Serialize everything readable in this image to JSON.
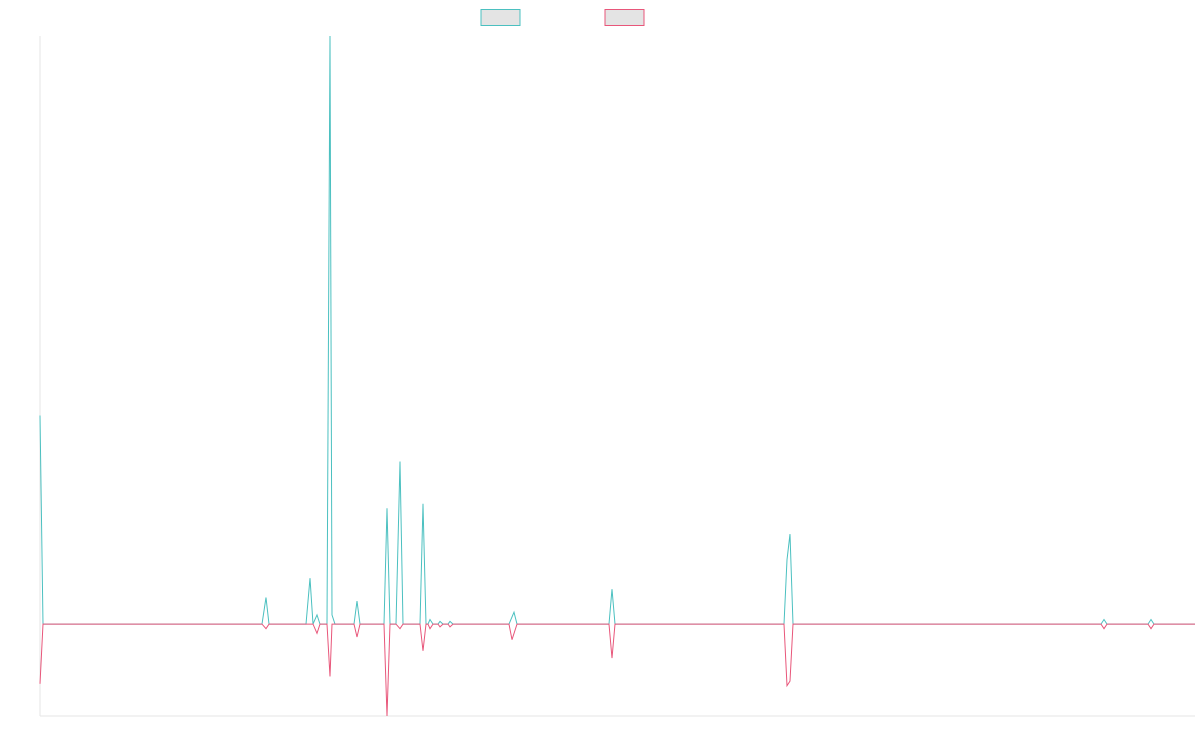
{
  "chart_data": {
    "type": "line",
    "title": "",
    "xlabel": "",
    "ylabel": "",
    "grid": false,
    "legend_position": "top-center",
    "x_range": [
      0,
      1155
    ],
    "y_range": [
      -100,
      640
    ],
    "series": [
      {
        "color": "#4bc0c0",
        "fill": "none",
        "points": [
          [
            0,
            227
          ],
          [
            3,
            0
          ],
          [
            111,
            0
          ],
          [
            113,
            0
          ],
          [
            115,
            0
          ],
          [
            222,
            0
          ],
          [
            226,
            29
          ],
          [
            229,
            0
          ],
          [
            266,
            0
          ],
          [
            270,
            50
          ],
          [
            273,
            0
          ],
          [
            277,
            10
          ],
          [
            280,
            0
          ],
          [
            287,
            0
          ],
          [
            290,
            640
          ],
          [
            292,
            10
          ],
          [
            295,
            0
          ],
          [
            314,
            0
          ],
          [
            317,
            25
          ],
          [
            320,
            0
          ],
          [
            344,
            0
          ],
          [
            347,
            126
          ],
          [
            350,
            0
          ],
          [
            356,
            0
          ],
          [
            360,
            177
          ],
          [
            363,
            0
          ],
          [
            380,
            0
          ],
          [
            383,
            131
          ],
          [
            386,
            0
          ],
          [
            388,
            0
          ],
          [
            390,
            5
          ],
          [
            393,
            0
          ],
          [
            398,
            0
          ],
          [
            400,
            3
          ],
          [
            403,
            0
          ],
          [
            408,
            0
          ],
          [
            410,
            3
          ],
          [
            413,
            0
          ],
          [
            469,
            0
          ],
          [
            474,
            13
          ],
          [
            477,
            0
          ],
          [
            496,
            0
          ],
          [
            498,
            0
          ],
          [
            501,
            0
          ],
          [
            569,
            0
          ],
          [
            572,
            38
          ],
          [
            575,
            0
          ],
          [
            744,
            0
          ],
          [
            747,
            70
          ],
          [
            750,
            98
          ],
          [
            753,
            0
          ],
          [
            768,
            0
          ],
          [
            770,
            0
          ],
          [
            772,
            0
          ],
          [
            815,
            0
          ],
          [
            818,
            0
          ],
          [
            820,
            0
          ],
          [
            1061,
            0
          ],
          [
            1064,
            5
          ],
          [
            1067,
            0
          ],
          [
            1097,
            0
          ],
          [
            1099,
            0
          ],
          [
            1101,
            0
          ],
          [
            1108,
            0
          ],
          [
            1111,
            5
          ],
          [
            1114,
            0
          ],
          [
            1155,
            0
          ]
        ]
      },
      {
        "color": "#e8567a",
        "fill": "none",
        "points": [
          [
            0,
            -65
          ],
          [
            3,
            0
          ],
          [
            111,
            0
          ],
          [
            113,
            0
          ],
          [
            115,
            0
          ],
          [
            222,
            0
          ],
          [
            226,
            -5
          ],
          [
            229,
            0
          ],
          [
            266,
            0
          ],
          [
            270,
            0
          ],
          [
            273,
            0
          ],
          [
            277,
            -10
          ],
          [
            280,
            0
          ],
          [
            287,
            0
          ],
          [
            290,
            -57
          ],
          [
            292,
            0
          ],
          [
            295,
            0
          ],
          [
            314,
            0
          ],
          [
            317,
            -14
          ],
          [
            320,
            0
          ],
          [
            344,
            0
          ],
          [
            347,
            -100
          ],
          [
            350,
            0
          ],
          [
            356,
            0
          ],
          [
            360,
            -5
          ],
          [
            363,
            0
          ],
          [
            380,
            0
          ],
          [
            383,
            -29
          ],
          [
            386,
            0
          ],
          [
            388,
            0
          ],
          [
            390,
            -5
          ],
          [
            393,
            0
          ],
          [
            398,
            0
          ],
          [
            400,
            -3
          ],
          [
            403,
            0
          ],
          [
            408,
            0
          ],
          [
            410,
            -3
          ],
          [
            413,
            0
          ],
          [
            469,
            0
          ],
          [
            472,
            -17
          ],
          [
            477,
            0
          ],
          [
            496,
            0
          ],
          [
            498,
            0
          ],
          [
            501,
            0
          ],
          [
            569,
            0
          ],
          [
            572,
            -37
          ],
          [
            575,
            0
          ],
          [
            744,
            0
          ],
          [
            747,
            -67
          ],
          [
            750,
            -62
          ],
          [
            753,
            0
          ],
          [
            768,
            0
          ],
          [
            770,
            0
          ],
          [
            772,
            0
          ],
          [
            815,
            0
          ],
          [
            818,
            0
          ],
          [
            820,
            0
          ],
          [
            1061,
            0
          ],
          [
            1064,
            -5
          ],
          [
            1067,
            0
          ],
          [
            1097,
            0
          ],
          [
            1099,
            0
          ],
          [
            1101,
            0
          ],
          [
            1108,
            0
          ],
          [
            1111,
            -5
          ],
          [
            1114,
            0
          ],
          [
            1155,
            0
          ]
        ]
      }
    ]
  }
}
